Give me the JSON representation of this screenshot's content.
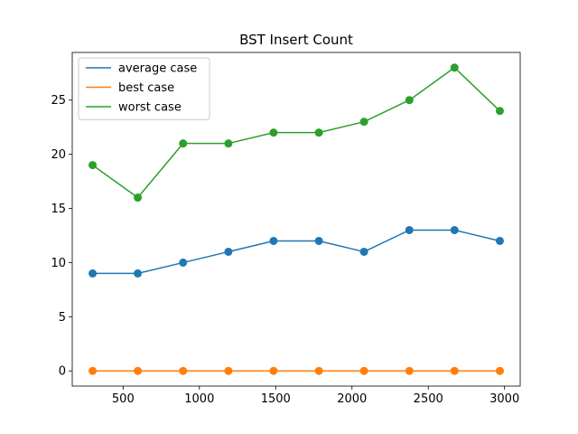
{
  "chart_data": {
    "type": "line",
    "title": "BST Insert Count",
    "xlabel": "",
    "ylabel": "",
    "x": [
      300,
      596,
      893,
      1190,
      1486,
      1783,
      2079,
      2376,
      2672,
      2969
    ],
    "series": [
      {
        "name": "average case",
        "color": "#1f77b4",
        "marker": "circle",
        "values": [
          9,
          9,
          10,
          11,
          12,
          12,
          11,
          13,
          13,
          12
        ]
      },
      {
        "name": "best case",
        "color": "#ff7f0e",
        "marker": "circle",
        "values": [
          0,
          0,
          0,
          0,
          0,
          0,
          0,
          0,
          0,
          0
        ]
      },
      {
        "name": "worst case",
        "color": "#2ca02c",
        "marker": "circle",
        "values": [
          19,
          16,
          21,
          21,
          22,
          22,
          23,
          25,
          28,
          24
        ]
      }
    ],
    "xlim": [
      166.55,
      3102.45
    ],
    "ylim": [
      -1.4,
      29.4
    ],
    "xticks": [
      500,
      1000,
      1500,
      2000,
      2500,
      3000
    ],
    "xtick_labels": [
      "500",
      "1000",
      "1500",
      "2000",
      "2500",
      "3000"
    ],
    "yticks": [
      0,
      5,
      10,
      15,
      20,
      25
    ],
    "ytick_labels": [
      "0",
      "5",
      "10",
      "15",
      "20",
      "25"
    ],
    "grid": false,
    "legend_position": "upper left"
  }
}
